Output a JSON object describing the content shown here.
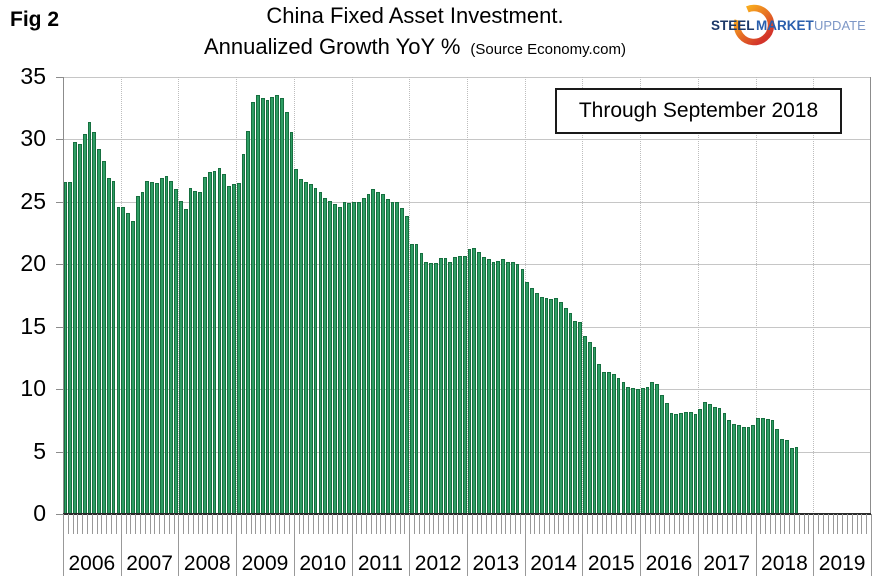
{
  "fig_label": "Fig 2",
  "title": {
    "line1": "China Fixed Asset Investment.",
    "line2": "Annualized Growth YoY %",
    "source": "(Source Economy.com)"
  },
  "annotation": "Through September 2018",
  "logo": {
    "word1": "STEEL",
    "word2": "MARKET",
    "word3": "UPDATE"
  },
  "colors": {
    "bar_fill": "#2e9d63",
    "bar_edge": "#166f3f",
    "grid": "#c6c6c6",
    "year_dotted": "#bdbdbd",
    "axis": "#8c8c8c",
    "zero_line": "#2b2b2b",
    "tick": "#999999",
    "logo_steel": "#1c3868",
    "logo_market": "#2a5fad",
    "logo_update": "#7d97c6",
    "swoosh_top": "#f8a91e",
    "swoosh_bottom": "#d3342a"
  },
  "chart_data": {
    "type": "bar",
    "title": "China Fixed Asset Investment. Annualized Growth YoY %",
    "xlabel": "",
    "ylabel": "",
    "ylim": [
      0,
      35
    ],
    "ytick_step": 5,
    "yticks": [
      35,
      30,
      25,
      20,
      15,
      10,
      5,
      0
    ],
    "grid": "horizontal solid, vertical dotted per year",
    "legend": null,
    "note": "Monthly bars, January 2006 through September 2018",
    "years": [
      {
        "year": "2006",
        "values": [
          26.6,
          26.6,
          29.8,
          29.6,
          30.4,
          31.4,
          30.6,
          29.2,
          28.3,
          26.9,
          26.7,
          24.6
        ]
      },
      {
        "year": "2007",
        "values": [
          24.6,
          24.1,
          23.5,
          25.5,
          25.8,
          26.7,
          26.6,
          26.5,
          26.9,
          27.1,
          26.7,
          26.0
        ]
      },
      {
        "year": "2008",
        "values": [
          25.1,
          24.4,
          26.1,
          25.9,
          25.8,
          27.0,
          27.4,
          27.5,
          27.7,
          27.2,
          26.3,
          26.4
        ]
      },
      {
        "year": "2009",
        "values": [
          26.5,
          28.8,
          30.7,
          33.0,
          33.6,
          33.3,
          33.2,
          33.4,
          33.6,
          33.3,
          32.2,
          30.6
        ]
      },
      {
        "year": "2010",
        "values": [
          27.6,
          26.8,
          26.6,
          26.4,
          26.1,
          25.8,
          25.3,
          25.1,
          24.8,
          24.6,
          25.0,
          24.9
        ]
      },
      {
        "year": "2011",
        "values": [
          25.0,
          25.0,
          25.3,
          25.6,
          26.0,
          25.8,
          25.6,
          25.2,
          25.0,
          25.0,
          24.5,
          23.9
        ]
      },
      {
        "year": "2012",
        "values": [
          21.6,
          21.6,
          20.9,
          20.2,
          20.1,
          20.1,
          20.5,
          20.5,
          20.2,
          20.6,
          20.7,
          20.7
        ]
      },
      {
        "year": "2013",
        "values": [
          21.2,
          21.3,
          21.0,
          20.6,
          20.4,
          20.2,
          20.3,
          20.4,
          20.2,
          20.2,
          20.0,
          19.6
        ]
      },
      {
        "year": "2014",
        "values": [
          18.6,
          18.1,
          17.7,
          17.4,
          17.3,
          17.2,
          17.3,
          17.0,
          16.5,
          16.1,
          15.5,
          15.4
        ]
      },
      {
        "year": "2015",
        "values": [
          14.3,
          13.8,
          13.4,
          12.0,
          11.4,
          11.4,
          11.2,
          10.9,
          10.6,
          10.2,
          10.1,
          10.0
        ]
      },
      {
        "year": "2016",
        "values": [
          10.1,
          10.2,
          10.6,
          10.4,
          9.5,
          8.9,
          8.1,
          8.0,
          8.1,
          8.2,
          8.2,
          8.0
        ]
      },
      {
        "year": "2017",
        "values": [
          8.4,
          9.0,
          8.8,
          8.6,
          8.5,
          8.1,
          7.5,
          7.2,
          7.1,
          7.0,
          7.0,
          7.1
        ]
      },
      {
        "year": "2018",
        "values": [
          7.7,
          7.7,
          7.6,
          7.5,
          6.8,
          6.0,
          5.9,
          5.3,
          5.4
        ]
      },
      {
        "year": "2019",
        "values": []
      }
    ]
  }
}
